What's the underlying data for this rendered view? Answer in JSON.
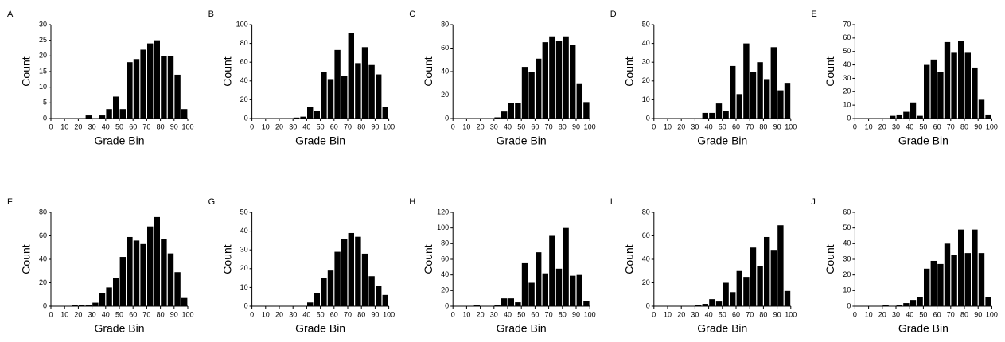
{
  "chart_data": [
    {
      "type": "histogram",
      "label": "A",
      "xlabel": "Grade Bin",
      "ylabel": "Count",
      "bins": [
        0,
        5,
        10,
        15,
        20,
        25,
        30,
        35,
        40,
        45,
        50,
        55,
        60,
        65,
        70,
        75,
        80,
        85,
        90,
        95,
        100
      ],
      "values": [
        0,
        0,
        0,
        0,
        0,
        1,
        0,
        1,
        3,
        7,
        3,
        18,
        19,
        22,
        24,
        25,
        20,
        20,
        14,
        3
      ],
      "color": "#000000",
      "xlim": [
        0,
        100
      ],
      "ylim": [
        0,
        30
      ],
      "xticks": [
        0,
        10,
        20,
        30,
        40,
        50,
        60,
        70,
        80,
        90,
        100
      ],
      "yticks": [
        0,
        5,
        10,
        15,
        20,
        25,
        30
      ]
    },
    {
      "type": "histogram",
      "label": "B",
      "xlabel": "Grade Bin",
      "ylabel": "Count",
      "bins": [
        0,
        5,
        10,
        15,
        20,
        25,
        30,
        35,
        40,
        45,
        50,
        55,
        60,
        65,
        70,
        75,
        80,
        85,
        90,
        95,
        100
      ],
      "values": [
        0,
        0,
        0,
        0,
        0,
        0,
        1,
        2,
        12,
        8,
        50,
        42,
        73,
        45,
        91,
        59,
        76,
        57,
        47,
        12
      ],
      "color": "#000000",
      "xlim": [
        0,
        100
      ],
      "ylim": [
        0,
        100
      ],
      "xticks": [
        0,
        10,
        20,
        30,
        40,
        50,
        60,
        70,
        80,
        90,
        100
      ],
      "yticks": [
        0,
        20,
        40,
        60,
        80,
        100
      ]
    },
    {
      "type": "histogram",
      "label": "C",
      "xlabel": "Grade Bin",
      "ylabel": "Count",
      "bins": [
        0,
        5,
        10,
        15,
        20,
        25,
        30,
        35,
        40,
        45,
        50,
        55,
        60,
        65,
        70,
        75,
        80,
        85,
        90,
        95,
        100
      ],
      "values": [
        0,
        0,
        0,
        0,
        0,
        0,
        1,
        6,
        13,
        13,
        44,
        40,
        51,
        65,
        70,
        66,
        70,
        63,
        30,
        14
      ],
      "color": "#000000",
      "xlim": [
        0,
        100
      ],
      "ylim": [
        0,
        80
      ],
      "xticks": [
        0,
        10,
        20,
        30,
        40,
        50,
        60,
        70,
        80,
        90,
        100
      ],
      "yticks": [
        0,
        20,
        40,
        60,
        80
      ]
    },
    {
      "type": "histogram",
      "label": "D",
      "xlabel": "Grade Bin",
      "ylabel": "Count",
      "bins": [
        0,
        5,
        10,
        15,
        20,
        25,
        30,
        35,
        40,
        45,
        50,
        55,
        60,
        65,
        70,
        75,
        80,
        85,
        90,
        95,
        100
      ],
      "values": [
        0,
        0,
        0,
        0,
        0,
        0,
        0,
        3,
        3,
        8,
        4,
        28,
        13,
        40,
        25,
        30,
        21,
        38,
        15,
        19
      ],
      "color": "#000000",
      "xlim": [
        0,
        100
      ],
      "ylim": [
        0,
        50
      ],
      "xticks": [
        0,
        10,
        20,
        30,
        40,
        50,
        60,
        70,
        80,
        90,
        100
      ],
      "yticks": [
        0,
        10,
        20,
        30,
        40,
        50
      ]
    },
    {
      "type": "histogram",
      "label": "E",
      "xlabel": "Grade Bin",
      "ylabel": "Count",
      "bins": [
        0,
        5,
        10,
        15,
        20,
        25,
        30,
        35,
        40,
        45,
        50,
        55,
        60,
        65,
        70,
        75,
        80,
        85,
        90,
        95,
        100
      ],
      "values": [
        0,
        0,
        0,
        0,
        0,
        2,
        3,
        5,
        12,
        2,
        40,
        44,
        35,
        57,
        49,
        58,
        49,
        38,
        14,
        3
      ],
      "color": "#000000",
      "xlim": [
        0,
        100
      ],
      "ylim": [
        0,
        70
      ],
      "xticks": [
        0,
        10,
        20,
        30,
        40,
        50,
        60,
        70,
        80,
        90,
        100
      ],
      "yticks": [
        0,
        10,
        20,
        30,
        40,
        50,
        60,
        70
      ]
    },
    {
      "type": "histogram",
      "label": "F",
      "xlabel": "Grade Bin",
      "ylabel": "Count",
      "bins": [
        0,
        5,
        10,
        15,
        20,
        25,
        30,
        35,
        40,
        45,
        50,
        55,
        60,
        65,
        70,
        75,
        80,
        85,
        90,
        95,
        100
      ],
      "values": [
        0,
        0,
        0,
        1,
        1,
        1,
        3,
        11,
        16,
        24,
        42,
        59,
        56,
        53,
        68,
        76,
        57,
        45,
        29,
        7
      ],
      "color": "#000000",
      "xlim": [
        0,
        100
      ],
      "ylim": [
        0,
        80
      ],
      "xticks": [
        0,
        10,
        20,
        30,
        40,
        50,
        60,
        70,
        80,
        90,
        100
      ],
      "yticks": [
        0,
        20,
        40,
        60,
        80
      ]
    },
    {
      "type": "histogram",
      "label": "G",
      "xlabel": "Grade Bin",
      "ylabel": "Count",
      "bins": [
        0,
        5,
        10,
        15,
        20,
        25,
        30,
        35,
        40,
        45,
        50,
        55,
        60,
        65,
        70,
        75,
        80,
        85,
        90,
        95,
        100
      ],
      "values": [
        0,
        0,
        0,
        0,
        0,
        0,
        0,
        0,
        2,
        7,
        15,
        19,
        29,
        36,
        39,
        37,
        28,
        16,
        11,
        6
      ],
      "color": "#000000",
      "xlim": [
        0,
        100
      ],
      "ylim": [
        0,
        50
      ],
      "xticks": [
        0,
        10,
        20,
        30,
        40,
        50,
        60,
        70,
        80,
        90,
        100
      ],
      "yticks": [
        0,
        10,
        20,
        30,
        40,
        50
      ]
    },
    {
      "type": "histogram",
      "label": "H",
      "xlabel": "Grade Bin",
      "ylabel": "Count",
      "bins": [
        0,
        5,
        10,
        15,
        20,
        25,
        30,
        35,
        40,
        45,
        50,
        55,
        60,
        65,
        70,
        75,
        80,
        85,
        90,
        95,
        100
      ],
      "values": [
        0,
        0,
        0,
        1,
        0,
        0,
        2,
        10,
        10,
        5,
        55,
        30,
        69,
        42,
        90,
        48,
        100,
        39,
        40,
        7
      ],
      "color": "#000000",
      "xlim": [
        0,
        100
      ],
      "ylim": [
        0,
        120
      ],
      "xticks": [
        0,
        10,
        20,
        30,
        40,
        50,
        60,
        70,
        80,
        90,
        100
      ],
      "yticks": [
        0,
        20,
        40,
        60,
        80,
        100,
        120
      ]
    },
    {
      "type": "histogram",
      "label": "I",
      "xlabel": "Grade Bin",
      "ylabel": "Count",
      "bins": [
        0,
        5,
        10,
        15,
        20,
        25,
        30,
        35,
        40,
        45,
        50,
        55,
        60,
        65,
        70,
        75,
        80,
        85,
        90,
        95,
        100
      ],
      "values": [
        0,
        0,
        0,
        0,
        0,
        0,
        1,
        2,
        6,
        4,
        20,
        12,
        30,
        25,
        50,
        34,
        59,
        48,
        69,
        13
      ],
      "color": "#000000",
      "xlim": [
        0,
        100
      ],
      "ylim": [
        0,
        80
      ],
      "xticks": [
        0,
        10,
        20,
        30,
        40,
        50,
        60,
        70,
        80,
        90,
        100
      ],
      "yticks": [
        0,
        20,
        40,
        60,
        80
      ]
    },
    {
      "type": "histogram",
      "label": "J",
      "xlabel": "Grade Bin",
      "ylabel": "Count",
      "bins": [
        0,
        5,
        10,
        15,
        20,
        25,
        30,
        35,
        40,
        45,
        50,
        55,
        60,
        65,
        70,
        75,
        80,
        85,
        90,
        95,
        100
      ],
      "values": [
        0,
        0,
        0,
        0,
        1,
        0,
        1,
        2,
        4,
        6,
        24,
        29,
        27,
        40,
        33,
        49,
        34,
        49,
        34,
        6
      ],
      "color": "#000000",
      "xlim": [
        0,
        100
      ],
      "ylim": [
        0,
        60
      ],
      "xticks": [
        0,
        10,
        20,
        30,
        40,
        50,
        60,
        70,
        80,
        90,
        100
      ],
      "yticks": [
        0,
        10,
        20,
        30,
        40,
        50,
        60
      ]
    }
  ]
}
